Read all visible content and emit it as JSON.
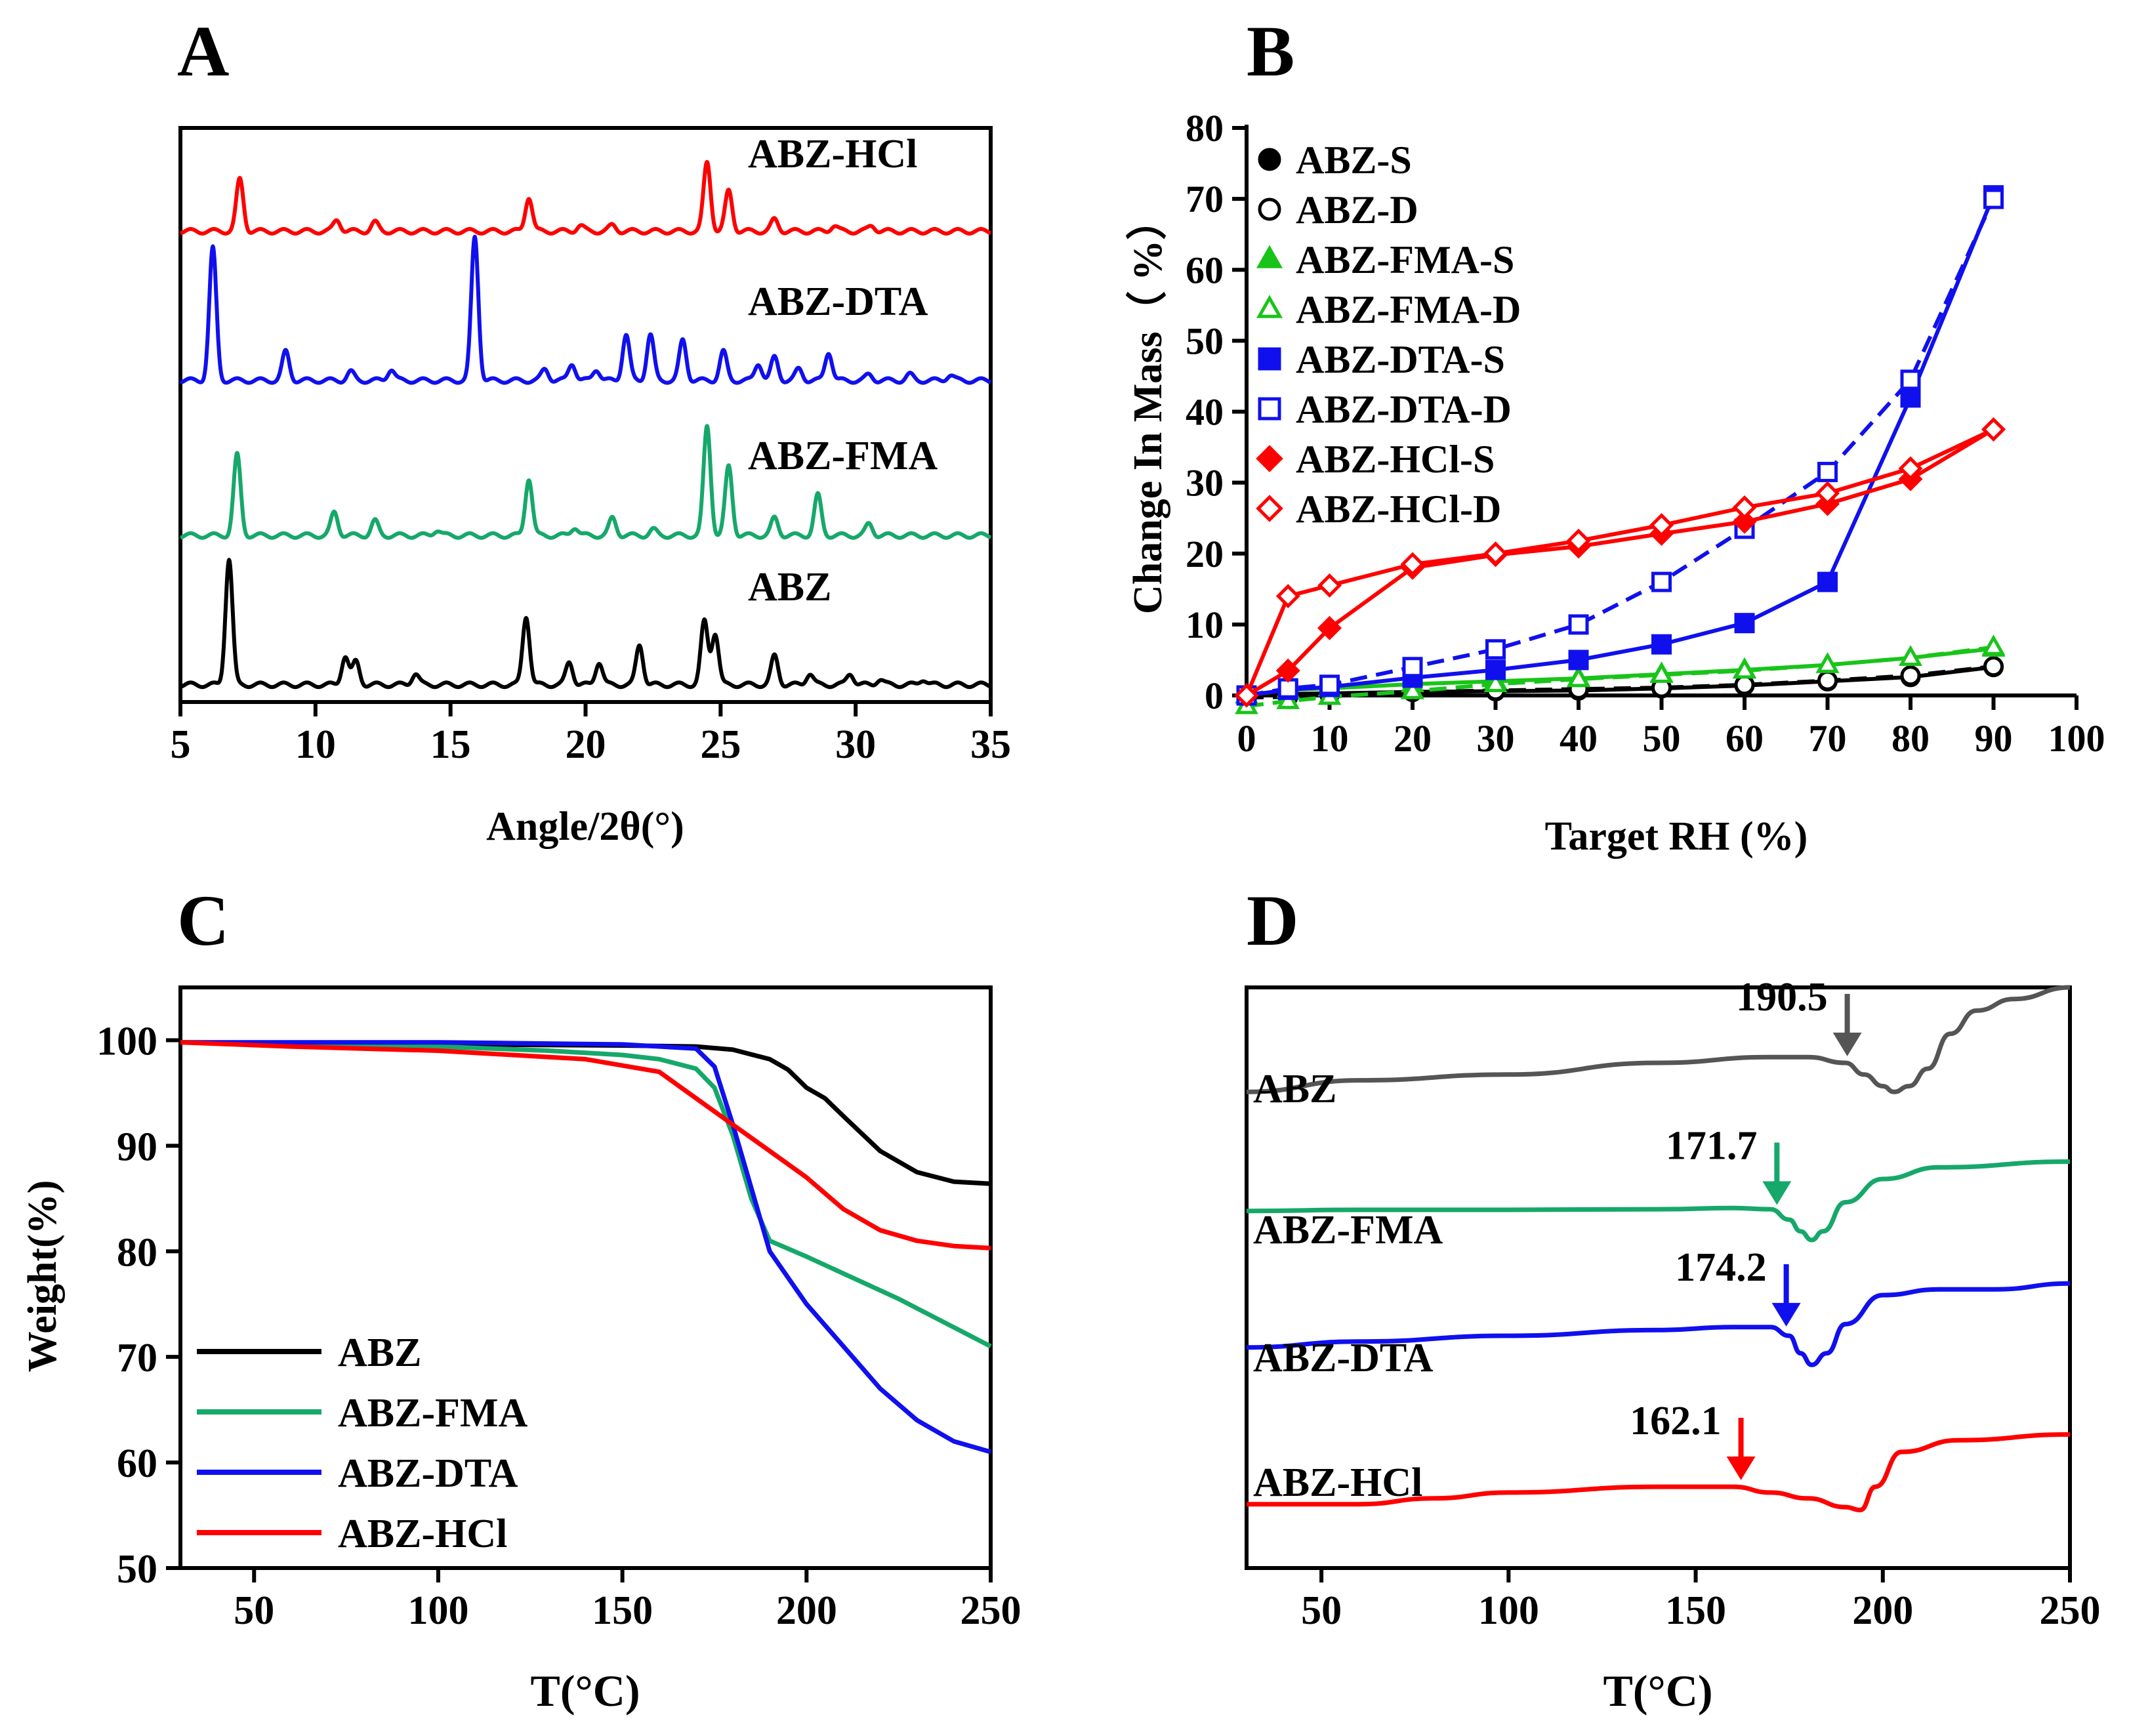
{
  "colors": {
    "black": "#000000",
    "red": "#ff0000",
    "blue": "#1010ee",
    "green": "#16a86a",
    "brightgreen": "#19c419",
    "gray": "#555555"
  },
  "chart_data": [
    {
      "panel": "A",
      "type": "line",
      "title": "",
      "xlabel": "Angle/2θ(°)",
      "ylabel": "",
      "xlim": [
        5,
        35
      ],
      "xticks": [
        "5",
        "10",
        "15",
        "20",
        "25",
        "30",
        "35"
      ],
      "series": [
        {
          "name": "ABZ-HCl",
          "color": "#ff0000",
          "baseline": 0.82,
          "peaks": [
            [
              7.2,
              0.09
            ],
            [
              10.8,
              0.02
            ],
            [
              12.2,
              0.015
            ],
            [
              17.9,
              0.06
            ],
            [
              19.8,
              0.01
            ],
            [
              21.0,
              0.01
            ],
            [
              24.5,
              0.12
            ],
            [
              25.3,
              0.07
            ],
            [
              27.0,
              0.02
            ],
            [
              29.2,
              0.01
            ],
            [
              30.6,
              0.01
            ]
          ]
        },
        {
          "name": "ABZ-DTA",
          "color": "#1010ee",
          "baseline": 0.56,
          "peaks": [
            [
              6.2,
              0.23
            ],
            [
              8.9,
              0.05
            ],
            [
              11.3,
              0.015
            ],
            [
              12.8,
              0.02
            ],
            [
              15.9,
              0.25
            ],
            [
              18.5,
              0.02
            ],
            [
              19.5,
              0.03
            ],
            [
              20.4,
              0.02
            ],
            [
              21.5,
              0.08
            ],
            [
              22.4,
              0.08
            ],
            [
              23.6,
              0.07
            ],
            [
              25.1,
              0.05
            ],
            [
              26.4,
              0.03
            ],
            [
              27.0,
              0.04
            ],
            [
              27.9,
              0.02
            ],
            [
              29.0,
              0.05
            ],
            [
              30.5,
              0.01
            ],
            [
              32.0,
              0.01
            ],
            [
              33.5,
              0.01
            ]
          ]
        },
        {
          "name": "ABZ-FMA",
          "color": "#16a86a",
          "baseline": 0.29,
          "peaks": [
            [
              7.1,
              0.14
            ],
            [
              10.7,
              0.04
            ],
            [
              12.2,
              0.025
            ],
            [
              14.5,
              0.01
            ],
            [
              17.9,
              0.1
            ],
            [
              19.6,
              0.015
            ],
            [
              21.0,
              0.03
            ],
            [
              22.5,
              0.01
            ],
            [
              24.5,
              0.19
            ],
            [
              25.3,
              0.12
            ],
            [
              27.0,
              0.03
            ],
            [
              28.6,
              0.07
            ],
            [
              30.5,
              0.02
            ]
          ]
        },
        {
          "name": "ABZ",
          "color": "#000000",
          "baseline": 0.03,
          "peaks": [
            [
              6.8,
              0.22
            ],
            [
              11.1,
              0.05
            ],
            [
              11.5,
              0.04
            ],
            [
              13.7,
              0.02
            ],
            [
              17.8,
              0.12
            ],
            [
              19.4,
              0.04
            ],
            [
              20.5,
              0.04
            ],
            [
              22.0,
              0.07
            ],
            [
              24.4,
              0.11
            ],
            [
              24.8,
              0.09
            ],
            [
              27.0,
              0.05
            ],
            [
              28.3,
              0.02
            ],
            [
              29.8,
              0.02
            ],
            [
              30.9,
              0.01
            ],
            [
              32.5,
              0.01
            ]
          ]
        }
      ]
    },
    {
      "panel": "B",
      "type": "line",
      "title": "",
      "xlabel": "Target RH (%)",
      "ylabel": "Change In Mass（ %）",
      "xlim": [
        0,
        100
      ],
      "ylim": [
        0,
        80
      ],
      "xticks": [
        "0",
        "10",
        "20",
        "30",
        "40",
        "50",
        "60",
        "70",
        "80",
        "90",
        "100"
      ],
      "yticks": [
        "0",
        "10",
        "20",
        "30",
        "40",
        "50",
        "60",
        "70",
        "80"
      ],
      "legend_position": "top-left",
      "series": [
        {
          "name": "ABZ-S",
          "color": "#000000",
          "marker": "circle",
          "filled": true,
          "dashed": false,
          "x": [
            0,
            5,
            10,
            20,
            30,
            40,
            50,
            60,
            70,
            80,
            90
          ],
          "y": [
            0,
            0.2,
            0.3,
            0.5,
            0.6,
            0.7,
            1.0,
            1.4,
            2.0,
            2.6,
            4.0
          ]
        },
        {
          "name": "ABZ-D",
          "color": "#000000",
          "marker": "circle",
          "filled": false,
          "dashed": true,
          "x": [
            0,
            5,
            10,
            20,
            30,
            40,
            50,
            60,
            70,
            80,
            90
          ],
          "y": [
            -0.3,
            -0.2,
            0.1,
            0.5,
            0.7,
            0.9,
            1.1,
            1.5,
            2.1,
            2.8,
            4.1
          ]
        },
        {
          "name": "ABZ-FMA-S",
          "color": "#19c419",
          "marker": "triangle",
          "filled": true,
          "dashed": false,
          "x": [
            0,
            5,
            10,
            20,
            30,
            40,
            50,
            60,
            70,
            80,
            90
          ],
          "y": [
            0,
            0.8,
            1.0,
            1.6,
            2.0,
            2.4,
            3.0,
            3.6,
            4.3,
            5.3,
            6.6
          ]
        },
        {
          "name": "ABZ-FMA-D",
          "color": "#19c419",
          "marker": "triangle",
          "filled": false,
          "dashed": true,
          "x": [
            0,
            5,
            10,
            20,
            30,
            40,
            50,
            60,
            70,
            80,
            90
          ],
          "y": [
            -1.5,
            -0.8,
            -0.2,
            0.6,
            1.6,
            2.3,
            2.9,
            3.5,
            4.3,
            5.3,
            6.8
          ]
        },
        {
          "name": "ABZ-DTA-S",
          "color": "#1010ee",
          "marker": "square",
          "filled": true,
          "dashed": false,
          "x": [
            0,
            5,
            10,
            20,
            30,
            40,
            50,
            60,
            70,
            80,
            90
          ],
          "y": [
            0,
            0.8,
            1.2,
            2.5,
            3.6,
            5.0,
            7.2,
            10.2,
            16.0,
            42.0,
            70.5
          ]
        },
        {
          "name": "ABZ-DTA-D",
          "color": "#1010ee",
          "marker": "square",
          "filled": false,
          "dashed": true,
          "x": [
            0,
            5,
            10,
            20,
            30,
            40,
            50,
            60,
            70,
            80,
            90
          ],
          "y": [
            0,
            1.0,
            1.5,
            4.0,
            6.5,
            10.0,
            16.0,
            23.5,
            31.5,
            44.5,
            70.0
          ]
        },
        {
          "name": "ABZ-HCl-S",
          "color": "#ff0000",
          "marker": "diamond",
          "filled": true,
          "dashed": false,
          "x": [
            0,
            5,
            10,
            20,
            30,
            40,
            50,
            60,
            70,
            80,
            90
          ],
          "y": [
            0,
            3.5,
            9.5,
            18.0,
            19.8,
            21.0,
            22.8,
            24.5,
            27.0,
            30.5,
            37.5
          ]
        },
        {
          "name": "ABZ-HCl-D",
          "color": "#ff0000",
          "marker": "diamond",
          "filled": false,
          "dashed": false,
          "x": [
            0,
            5,
            10,
            20,
            30,
            40,
            50,
            60,
            70,
            80,
            90
          ],
          "y": [
            0,
            14.0,
            15.5,
            18.5,
            20.0,
            21.8,
            24.0,
            26.5,
            28.5,
            32.0,
            37.5
          ]
        }
      ]
    },
    {
      "panel": "C",
      "type": "line",
      "title": "",
      "xlabel": "T(°C)",
      "ylabel": "Weight(%)",
      "xlim": [
        30,
        250
      ],
      "ylim": [
        50,
        105
      ],
      "xticks": [
        "50",
        "100",
        "150",
        "200",
        "250"
      ],
      "yticks": [
        "50",
        "60",
        "70",
        "80",
        "90",
        "100"
      ],
      "legend_position": "bottom-left",
      "series": [
        {
          "name": "ABZ",
          "color": "#000000",
          "x": [
            30,
            60,
            100,
            150,
            170,
            180,
            190,
            195,
            200,
            205,
            210,
            220,
            230,
            240,
            250
          ],
          "y": [
            99.8,
            99.7,
            99.6,
            99.5,
            99.4,
            99.1,
            98.2,
            97.2,
            95.5,
            94.5,
            92.8,
            89.5,
            87.5,
            86.6,
            86.4
          ]
        },
        {
          "name": "ABZ-FMA",
          "color": "#16a86a",
          "x": [
            30,
            60,
            100,
            130,
            150,
            160,
            170,
            175,
            180,
            185,
            190,
            200,
            225,
            250
          ],
          "y": [
            99.8,
            99.6,
            99.4,
            99.0,
            98.6,
            98.2,
            97.3,
            95.5,
            91.0,
            85.0,
            81.0,
            79.5,
            75.5,
            71.0
          ]
        },
        {
          "name": "ABZ-DTA",
          "color": "#1010ee",
          "x": [
            30,
            60,
            100,
            150,
            170,
            175,
            180,
            185,
            190,
            200,
            210,
            220,
            230,
            240,
            250
          ],
          "y": [
            99.8,
            99.8,
            99.8,
            99.6,
            99.2,
            97.5,
            92.0,
            86.0,
            80.0,
            75.0,
            71.0,
            67.0,
            64.0,
            62.0,
            61.0
          ]
        },
        {
          "name": "ABZ-HCl",
          "color": "#ff0000",
          "x": [
            30,
            60,
            100,
            140,
            160,
            170,
            180,
            190,
            200,
            205,
            210,
            220,
            230,
            240,
            250
          ],
          "y": [
            99.8,
            99.4,
            99.0,
            98.2,
            97.0,
            94.5,
            92.0,
            89.5,
            87.0,
            85.5,
            84.0,
            82.0,
            81.0,
            80.5,
            80.3
          ]
        }
      ]
    },
    {
      "panel": "D",
      "type": "line",
      "title": "",
      "xlabel": "T(°C)",
      "ylabel": "",
      "xlim": [
        30,
        250
      ],
      "xticks": [
        "50",
        "100",
        "150",
        "200",
        "250"
      ],
      "series": [
        {
          "name": "ABZ",
          "color": "#555555",
          "onset_label": "190.5",
          "onset_x": 190.5,
          "x": [
            30,
            60,
            100,
            140,
            170,
            180,
            190,
            195,
            200,
            203,
            207,
            212,
            218,
            225,
            235,
            250
          ],
          "y": [
            0.82,
            0.84,
            0.85,
            0.87,
            0.88,
            0.88,
            0.87,
            0.85,
            0.83,
            0.82,
            0.83,
            0.86,
            0.92,
            0.96,
            0.98,
            1.0
          ]
        },
        {
          "name": "ABZ-FMA",
          "color": "#16a86a",
          "onset_label": "171.7",
          "onset_x": 171.7,
          "x": [
            30,
            60,
            100,
            140,
            160,
            170,
            175,
            178,
            181,
            184,
            190,
            200,
            215,
            250
          ],
          "y": [
            0.615,
            0.617,
            0.617,
            0.618,
            0.62,
            0.618,
            0.6,
            0.58,
            0.565,
            0.58,
            0.63,
            0.67,
            0.69,
            0.7
          ]
        },
        {
          "name": "ABZ-DTA",
          "color": "#1010ee",
          "onset_label": "174.2",
          "onset_x": 174.2,
          "x": [
            30,
            60,
            100,
            140,
            160,
            170,
            175,
            178,
            181,
            185,
            190,
            200,
            215,
            230,
            250
          ],
          "y": [
            0.38,
            0.39,
            0.4,
            0.41,
            0.415,
            0.415,
            0.4,
            0.37,
            0.35,
            0.37,
            0.42,
            0.47,
            0.48,
            0.48,
            0.49
          ]
        },
        {
          "name": "ABZ-HCl",
          "color": "#ff0000",
          "onset_label": "162.1",
          "onset_x": 162.1,
          "x": [
            30,
            60,
            80,
            100,
            140,
            160,
            170,
            180,
            190,
            194,
            198,
            205,
            220,
            250
          ],
          "y": [
            0.11,
            0.11,
            0.12,
            0.13,
            0.14,
            0.14,
            0.13,
            0.12,
            0.105,
            0.1,
            0.14,
            0.2,
            0.22,
            0.23
          ]
        }
      ]
    }
  ],
  "panels": {
    "A": {
      "letter": "A",
      "xlabel": "Angle/2θ(°)",
      "labels": [
        "ABZ-HCl",
        "ABZ-DTA",
        "ABZ-FMA",
        "ABZ"
      ]
    },
    "B": {
      "letter": "B",
      "xlabel": "Target RH (%)",
      "ylabel": "Change In Mass（ %）"
    },
    "C": {
      "letter": "C",
      "xlabel": "T(°C)",
      "ylabel": "Weight(%)"
    },
    "D": {
      "letter": "D",
      "xlabel": "T(°C)",
      "labels": [
        "ABZ",
        "ABZ-FMA",
        "ABZ-DTA",
        "ABZ-HCl"
      ]
    }
  }
}
